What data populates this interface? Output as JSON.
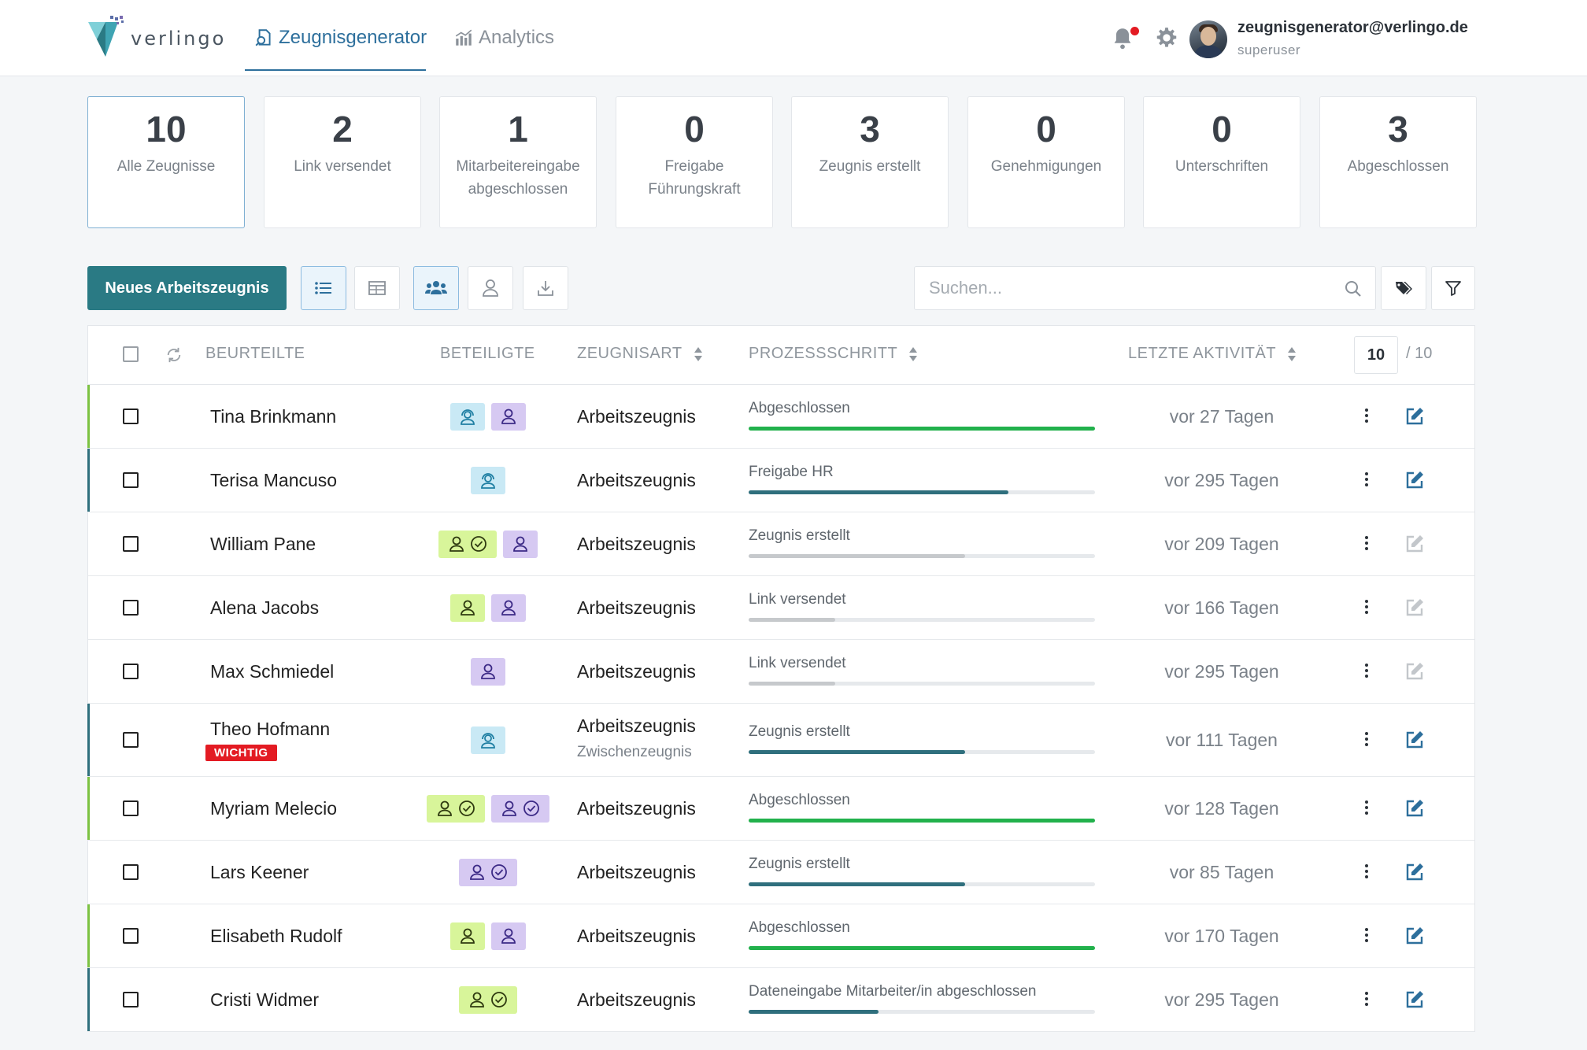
{
  "header": {
    "logo_text": "verlingo",
    "nav": [
      {
        "label": "Zeugnisgenerator",
        "active": true
      },
      {
        "label": "Analytics",
        "active": false
      }
    ],
    "user": {
      "email": "zeugnisgenerator@verlingo.de",
      "role": "superuser"
    },
    "icons": [
      "bell-icon",
      "gear-icon"
    ]
  },
  "stats": [
    {
      "value": "10",
      "label": "Alle Zeugnisse",
      "selected": true
    },
    {
      "value": "2",
      "label": "Link versendet"
    },
    {
      "value": "1",
      "label": "Mitarbeitereingabe abgeschlossen"
    },
    {
      "value": "0",
      "label": "Freigabe Führungskraft"
    },
    {
      "value": "3",
      "label": "Zeugnis erstellt"
    },
    {
      "value": "0",
      "label": "Genehmigungen"
    },
    {
      "value": "0",
      "label": "Unterschriften"
    },
    {
      "value": "3",
      "label": "Abgeschlossen"
    }
  ],
  "toolbar": {
    "new_button": "Neues Arbeitszeugnis",
    "search_placeholder": "Suchen...",
    "view_icons": [
      "list-view-icon",
      "table-view-icon",
      "group-icon",
      "user-icon",
      "download-icon"
    ],
    "right_icons": [
      "tags-icon",
      "filter-icon"
    ]
  },
  "table": {
    "headers": {
      "beurteilte": "BEURTEILTE",
      "beteiligte": "BETEILIGTE",
      "zeugnisart": "ZEUGNISART",
      "prozessschritt": "PROZESSSCHRITT",
      "letzte_aktivitaet": "LETZTE AKTIVITÄT"
    },
    "page_size": "10",
    "total": "/ 10",
    "rows": [
      {
        "name": "Tina Brinkmann",
        "badges": [
          {
            "color": "blue",
            "done": false
          },
          {
            "color": "purple",
            "done": false
          }
        ],
        "art": "Arbeitszeugnis",
        "step": "Abgeschlossen",
        "progress": 1.0,
        "bar_color": "#22b14c",
        "accent": "#7cc242",
        "activity": "vor 27 Tagen",
        "edit_active": true
      },
      {
        "name": "Terisa Mancuso",
        "badges": [
          {
            "color": "blue",
            "done": false
          }
        ],
        "art": "Arbeitszeugnis",
        "step": "Freigabe HR",
        "progress": 0.75,
        "bar_color": "#2f6f7d",
        "accent": "#2f6f7d",
        "activity": "vor 295 Tagen",
        "edit_active": true
      },
      {
        "name": "William Pane",
        "badges": [
          {
            "color": "green",
            "done": true
          },
          {
            "color": "purple",
            "done": false
          }
        ],
        "art": "Arbeitszeugnis",
        "step": "Zeugnis erstellt",
        "progress": 0.625,
        "bar_color": "#c6c9cc",
        "accent": "",
        "activity": "vor 209 Tagen",
        "edit_active": false
      },
      {
        "name": "Alena Jacobs",
        "badges": [
          {
            "color": "green",
            "done": false
          },
          {
            "color": "purple",
            "done": false
          }
        ],
        "art": "Arbeitszeugnis",
        "step": "Link versendet",
        "progress": 0.25,
        "bar_color": "#c6c9cc",
        "accent": "",
        "activity": "vor 166 Tagen",
        "edit_active": false
      },
      {
        "name": "Max Schmiedel",
        "badges": [
          {
            "color": "purple",
            "done": false
          }
        ],
        "art": "Arbeitszeugnis",
        "step": "Link versendet",
        "progress": 0.25,
        "bar_color": "#c6c9cc",
        "accent": "",
        "activity": "vor 295 Tagen",
        "edit_active": false
      },
      {
        "name": "Theo Hofmann",
        "tag": "WICHTIG",
        "badges": [
          {
            "color": "blue",
            "done": false
          }
        ],
        "art": "Arbeitszeugnis",
        "art2": "Zwischenzeugnis",
        "step": "Zeugnis erstellt",
        "progress": 0.625,
        "bar_color": "#2f6f7d",
        "accent": "#2f6f7d",
        "activity": "vor 111 Tagen",
        "edit_active": true
      },
      {
        "name": "Myriam Melecio",
        "badges": [
          {
            "color": "green",
            "done": true
          },
          {
            "color": "purple",
            "done": true
          }
        ],
        "art": "Arbeitszeugnis",
        "step": "Abgeschlossen",
        "progress": 1.0,
        "bar_color": "#22b14c",
        "accent": "#7cc242",
        "activity": "vor 128 Tagen",
        "edit_active": true
      },
      {
        "name": "Lars Keener",
        "badges": [
          {
            "color": "purple",
            "done": true
          }
        ],
        "art": "Arbeitszeugnis",
        "step": "Zeugnis erstellt",
        "progress": 0.625,
        "bar_color": "#2f6f7d",
        "accent": "",
        "activity": "vor 85 Tagen",
        "edit_active": true
      },
      {
        "name": "Elisabeth Rudolf",
        "badges": [
          {
            "color": "green",
            "done": false
          },
          {
            "color": "purple",
            "done": false
          }
        ],
        "art": "Arbeitszeugnis",
        "step": "Abgeschlossen",
        "progress": 1.0,
        "bar_color": "#22b14c",
        "accent": "#7cc242",
        "activity": "vor 170 Tagen",
        "edit_active": true
      },
      {
        "name": "Cristi Widmer",
        "badges": [
          {
            "color": "green",
            "done": true
          }
        ],
        "art": "Arbeitszeugnis",
        "step": "Dateneingabe Mitarbeiter/in abgeschlossen",
        "progress": 0.375,
        "bar_color": "#2f6f7d",
        "accent": "#2f6f7d",
        "activity": "vor 295 Tagen",
        "edit_active": true
      }
    ]
  },
  "colors": {
    "primary": "#2a7a84",
    "link": "#2d6f9c",
    "notification": "#e31b23",
    "badge_blue": "#c9e9f5",
    "badge_purple": "#d6c9f2",
    "badge_green": "#d8f59a"
  }
}
